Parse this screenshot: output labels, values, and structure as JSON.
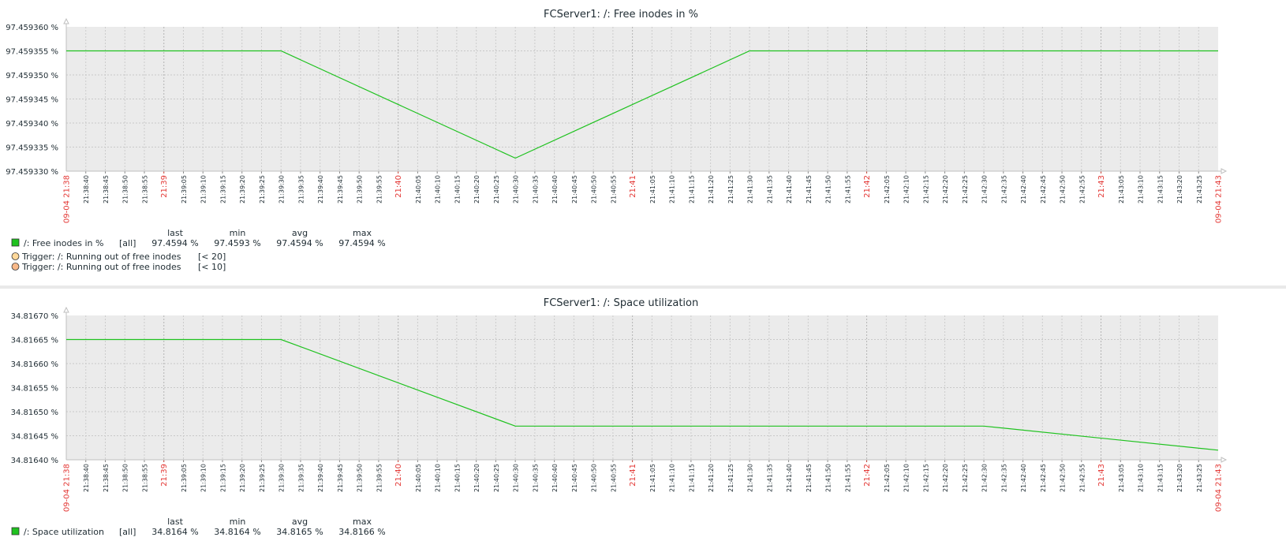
{
  "chart_data": [
    {
      "type": "line",
      "title": "FCServer1: /: Free inodes in %",
      "x_start_label": "09-04 21:38",
      "x_end_label": "09-04 21:43",
      "x_time_range": [
        "21:38:35",
        "21:43:30"
      ],
      "yticks": [
        "97.459360 %",
        "97.459355 %",
        "97.459350 %",
        "97.459345 %",
        "97.459340 %",
        "97.459335 %",
        "97.459330 %"
      ],
      "ylim": [
        97.45933,
        97.45936
      ],
      "grid": true,
      "series": [
        {
          "name": "/: Free inodes in %",
          "color": "#1fc21f",
          "points": [
            [
              "21:38:35",
              97.459355
            ],
            [
              "21:39:30",
              97.459355
            ],
            [
              "21:40:30",
              97.4593327
            ],
            [
              "21:41:30",
              97.459355
            ],
            [
              "21:43:30",
              97.459355
            ]
          ]
        }
      ],
      "legend": {
        "headers": [
          "last",
          "min",
          "avg",
          "max"
        ],
        "items": [
          {
            "swatch": "#1fc21f",
            "label": "/: Free inodes in %",
            "func": "[all]",
            "values": [
              "97.4594 %",
              "97.4593 %",
              "97.4594 %",
              "97.4594 %"
            ]
          }
        ],
        "triggers": [
          {
            "color": "#ffd89a",
            "label": "Trigger: /: Running out of free inodes",
            "cond": "[< 20]"
          },
          {
            "color": "#f9b989",
            "label": "Trigger: /: Running out of free inodes",
            "cond": "[< 10]"
          }
        ]
      }
    },
    {
      "type": "line",
      "title": "FCServer1: /: Space utilization",
      "x_start_label": "09-04 21:38",
      "x_end_label": "09-04 21:43",
      "x_time_range": [
        "21:38:35",
        "21:43:30"
      ],
      "yticks": [
        "34.81670 %",
        "34.81665 %",
        "34.81660 %",
        "34.81655 %",
        "34.81650 %",
        "34.81645 %",
        "34.81640 %"
      ],
      "ylim": [
        34.8164,
        34.8167
      ],
      "grid": true,
      "series": [
        {
          "name": "/: Space utilization",
          "color": "#1fc21f",
          "points": [
            [
              "21:38:35",
              34.81665
            ],
            [
              "21:39:30",
              34.81665
            ],
            [
              "21:40:30",
              34.81647
            ],
            [
              "21:42:30",
              34.81647
            ],
            [
              "21:43:30",
              34.81642
            ]
          ]
        }
      ],
      "legend": {
        "headers": [
          "last",
          "min",
          "avg",
          "max"
        ],
        "items": [
          {
            "swatch": "#1fc21f",
            "label": "/: Space utilization",
            "func": "[all]",
            "values": [
              "34.8164 %",
              "34.8164 %",
              "34.8165 %",
              "34.8166 %"
            ]
          }
        ],
        "triggers": []
      }
    }
  ]
}
